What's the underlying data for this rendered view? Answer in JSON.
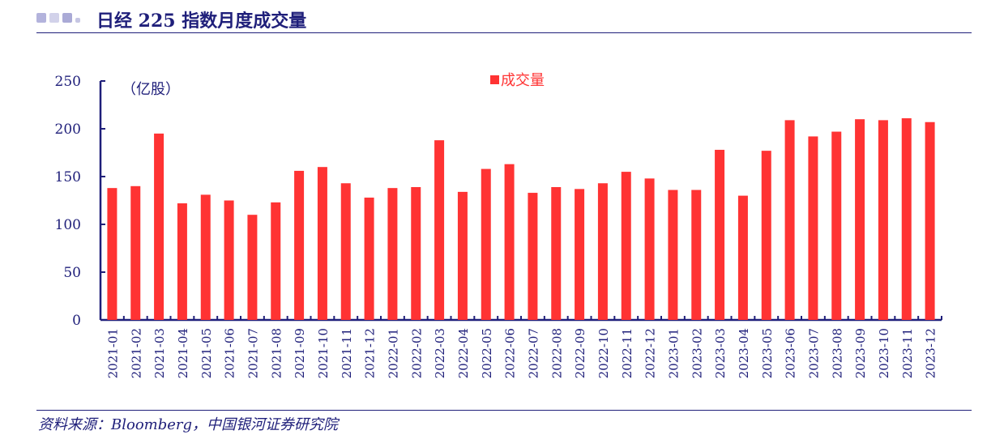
{
  "header": {
    "title": "日经 225 指数月度成交量"
  },
  "footer": {
    "source": "资料来源：Bloomberg，中国银河证券研究院"
  },
  "colors": {
    "bar": "#ff3333",
    "axis": "#1f1f7a",
    "text": "#1f1f7a"
  },
  "chart_data": {
    "type": "bar",
    "unit_label": "（亿股）",
    "legend": "成交量",
    "legend_position": "top-center",
    "grid": false,
    "ylim": [
      0,
      250
    ],
    "yticks": [
      0,
      50,
      100,
      150,
      200,
      250
    ],
    "categories": [
      "2021-01",
      "2021-02",
      "2021-03",
      "2021-04",
      "2021-05",
      "2021-06",
      "2021-07",
      "2021-08",
      "2021-09",
      "2021-10",
      "2021-11",
      "2021-12",
      "2022-01",
      "2022-02",
      "2022-03",
      "2022-04",
      "2022-05",
      "2022-06",
      "2022-07",
      "2022-08",
      "2022-09",
      "2022-10",
      "2022-11",
      "2022-12",
      "2023-01",
      "2023-02",
      "2023-03",
      "2023-04",
      "2023-05",
      "2023-06",
      "2023-07",
      "2023-08",
      "2023-09",
      "2023-10",
      "2023-11",
      "2023-12"
    ],
    "series": [
      {
        "name": "成交量",
        "values": [
          138,
          140,
          195,
          122,
          131,
          125,
          110,
          123,
          156,
          160,
          143,
          128,
          138,
          139,
          188,
          134,
          158,
          163,
          133,
          139,
          137,
          143,
          155,
          148,
          136,
          136,
          178,
          130,
          177,
          209,
          192,
          197,
          210,
          209,
          211,
          207
        ]
      }
    ]
  }
}
